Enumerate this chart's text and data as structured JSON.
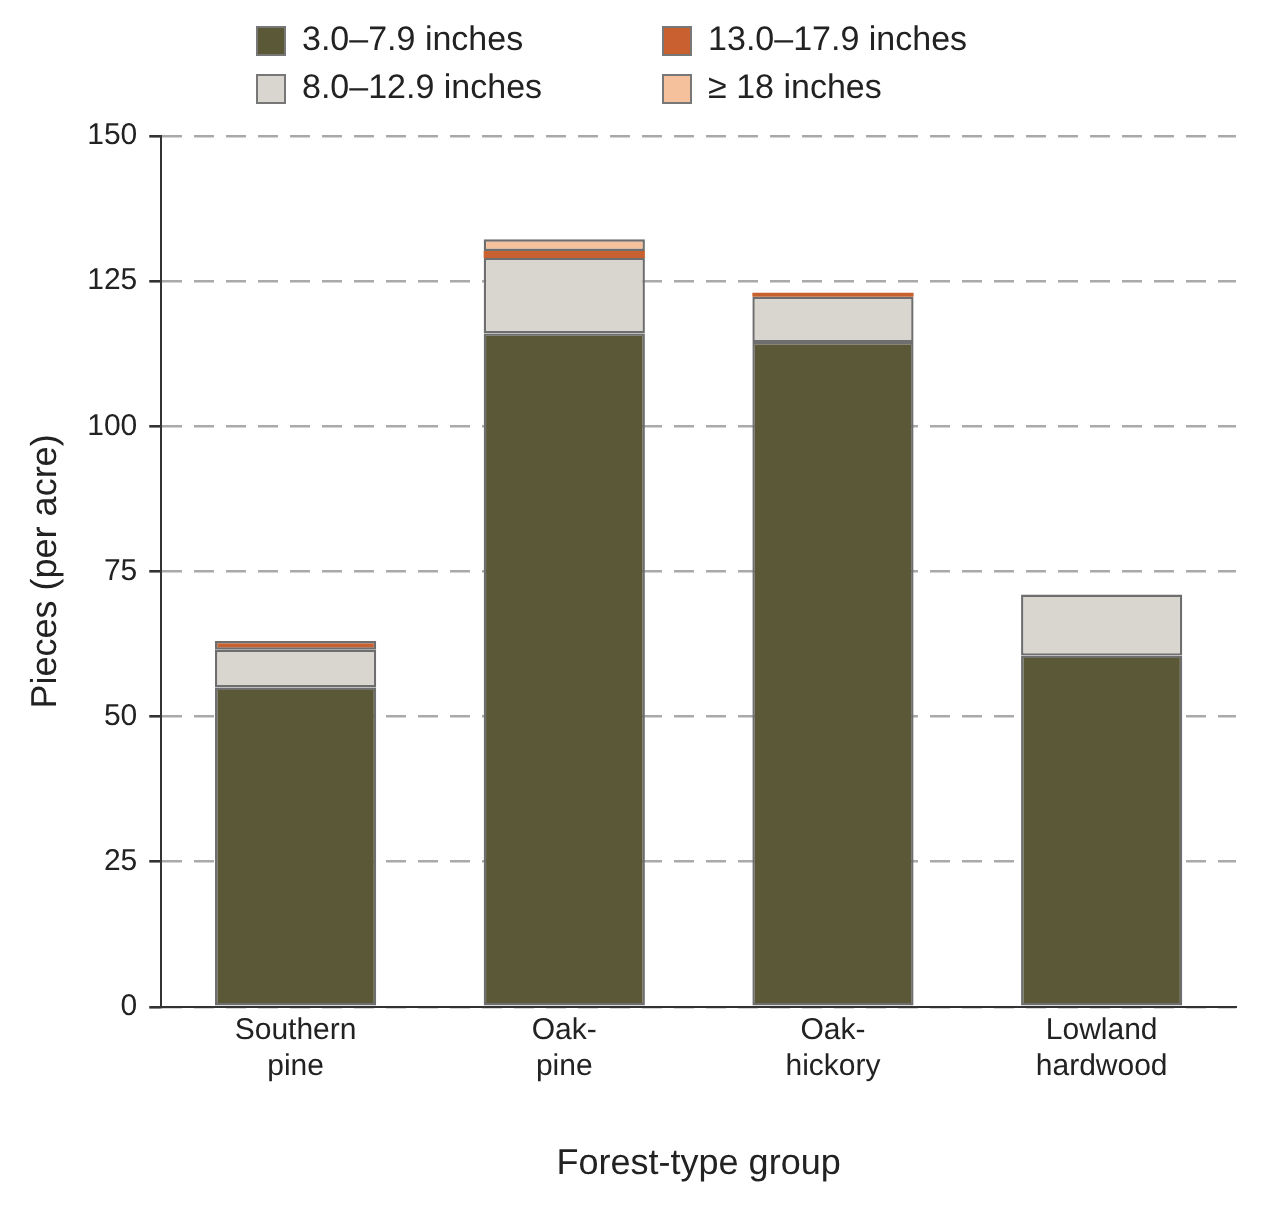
{
  "chart_data": {
    "type": "bar",
    "stacked": true,
    "xlabel": "Forest-type group",
    "ylabel": "Pieces (per acre)",
    "categories": [
      "Southern pine",
      "Oak-pine",
      "Oak-hickory",
      "Lowland hardwood"
    ],
    "series": [
      {
        "name": "3.0–7.9 inches",
        "color": "#5a5837",
        "values": [
          55,
          116,
          114.5,
          60.5
        ]
      },
      {
        "name": "8.0–12.9 inches",
        "color": "#d9d5cf",
        "values": [
          6.5,
          13,
          7.8,
          10.5
        ]
      },
      {
        "name": "13.0–17.9 inches",
        "color": "#c8612f",
        "values": [
          1.5,
          1.2,
          0.7,
          0
        ]
      },
      {
        "name": "≥ 18 inches",
        "color": "#f5c09c",
        "values": [
          0,
          2,
          0,
          0
        ]
      }
    ],
    "ylim": [
      0,
      150
    ],
    "yticks": [
      0,
      25,
      50,
      75,
      100,
      125,
      150
    ],
    "grid": "y",
    "legend": "top"
  }
}
